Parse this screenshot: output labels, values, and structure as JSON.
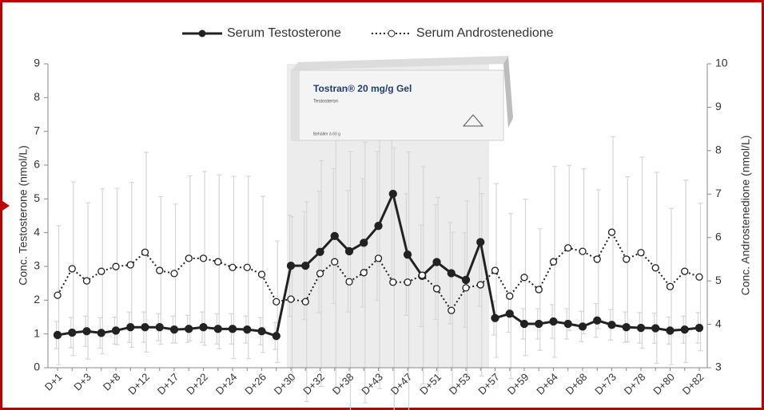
{
  "chart_data": {
    "type": "line",
    "legend": "top",
    "ylabel": "Conc. Testosterone (nmol/L)",
    "y2label": "Conc. Androstenedione (nmol/L)",
    "image_text": {
      "title": "Tostran® 20 mg/g Gel",
      "subtitle": "Testosteron",
      "footer": "Behälter à 60 g"
    },
    "categories": [
      "D+1",
      null,
      "D+3",
      null,
      "D+8",
      null,
      "D+12",
      null,
      "D+17",
      null,
      "D+22",
      null,
      "D+24",
      null,
      "D+26",
      null,
      "D+30",
      null,
      "D+32",
      null,
      "D+38",
      null,
      "D+43",
      null,
      "D+47",
      null,
      "D+51",
      null,
      "D+53",
      null,
      "D+57",
      null,
      "D+59",
      null,
      "D+64",
      null,
      "D+68",
      null,
      "D+73",
      null,
      "D+78",
      null,
      "D+80",
      null,
      "D+82"
    ],
    "ylim": [
      0,
      9
    ],
    "yticks": [
      0,
      1,
      2,
      3,
      4,
      5,
      6,
      7,
      8,
      9
    ],
    "y2lim": [
      3,
      10
    ],
    "y2ticks": [
      3,
      4,
      5,
      6,
      7,
      8,
      9,
      10
    ],
    "series": [
      {
        "name": "Serum Testosterone",
        "color": "#222222",
        "style": "solid",
        "values": [
          0.97,
          1.04,
          1.08,
          1.03,
          1.1,
          1.2,
          1.2,
          1.2,
          1.13,
          1.15,
          1.2,
          1.15,
          1.15,
          1.13,
          1.08,
          0.94,
          3.02,
          3.02,
          3.43,
          3.9,
          3.45,
          3.7,
          4.2,
          5.15,
          3.35,
          2.72,
          3.13,
          2.8,
          2.6,
          3.72,
          1.47,
          1.6,
          1.3,
          1.3,
          1.37,
          1.3,
          1.22,
          1.4,
          1.27,
          1.2,
          1.18,
          1.17,
          1.1,
          1.13,
          1.18
        ],
        "errors": [
          0.4,
          0.45,
          0.45,
          0.45,
          0.4,
          0.45,
          0.45,
          0.4,
          0.4,
          0.4,
          0.45,
          0.45,
          0.45,
          0.4,
          0.4,
          0.4,
          1.5,
          1.6,
          1.8,
          2.0,
          1.8,
          1.9,
          2.2,
          2.6,
          1.8,
          1.5,
          1.7,
          1.5,
          1.4,
          1.9,
          0.5,
          0.55,
          0.45,
          0.45,
          0.5,
          0.45,
          0.45,
          0.5,
          0.45,
          0.45,
          0.45,
          0.45,
          0.4,
          0.4,
          0.45
        ]
      },
      {
        "name": "Serum Androstenedione",
        "color": "#222222",
        "style": "dotted",
        "axis": "y2",
        "values": [
          4.67,
          5.28,
          5.0,
          5.22,
          5.33,
          5.37,
          5.66,
          5.24,
          5.17,
          5.52,
          5.52,
          5.44,
          5.31,
          5.31,
          5.15,
          4.52,
          4.58,
          4.52,
          5.17,
          5.44,
          4.98,
          5.19,
          5.52,
          4.97,
          4.97,
          5.13,
          4.82,
          4.32,
          4.84,
          4.91,
          5.24,
          4.65,
          5.08,
          4.8,
          5.44,
          5.76,
          5.68,
          5.5,
          6.12,
          5.5,
          5.65,
          5.3,
          4.87,
          5.22,
          5.09
        ],
        "errors": [
          1.6,
          2.0,
          1.8,
          1.9,
          1.8,
          1.9,
          2.3,
          1.7,
          1.6,
          1.9,
          2.0,
          2.0,
          2.1,
          2.1,
          1.8,
          1.4,
          1.9,
          2.3,
          2.6,
          3.0,
          3.0,
          3.0,
          3.0,
          3.1,
          3.0,
          2.5,
          2.1,
          1.8,
          2.0,
          2.1,
          2.0,
          1.9,
          1.8,
          1.4,
          2.2,
          1.9,
          1.9,
          1.6,
          2.2,
          1.9,
          2.2,
          2.2,
          1.8,
          2.1,
          1.7
        ]
      }
    ]
  }
}
